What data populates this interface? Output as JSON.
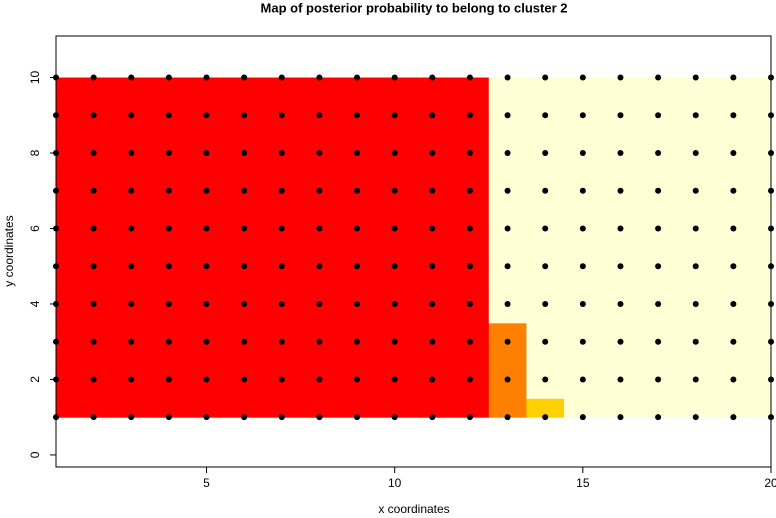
{
  "chart_data": {
    "type": "heatmap",
    "title": "Map of posterior probability to belong to cluster  2",
    "x_label": "x coordinates",
    "y_label": "y coordinates",
    "x": [
      1,
      2,
      3,
      4,
      5,
      6,
      7,
      8,
      9,
      10,
      11,
      12,
      13,
      14,
      15,
      16,
      17,
      18,
      19,
      20
    ],
    "y": [
      1,
      2,
      3,
      4,
      5,
      6,
      7,
      8,
      9,
      10
    ],
    "z": [
      [
        0,
        0,
        0,
        0,
        0,
        0,
        0,
        0,
        0,
        0,
        0,
        0,
        0.3,
        0.4,
        1,
        1,
        1,
        1,
        1,
        1
      ],
      [
        0,
        0,
        0,
        0,
        0,
        0,
        0,
        0,
        0,
        0,
        0,
        0,
        0.3,
        0.85,
        1,
        1,
        1,
        1,
        1,
        1
      ],
      [
        0,
        0,
        0,
        0,
        0,
        0,
        0,
        0,
        0,
        0,
        0,
        0,
        0.3,
        1,
        1,
        1,
        1,
        1,
        1,
        1
      ],
      [
        0,
        0,
        0,
        0,
        0,
        0,
        0,
        0,
        0,
        0,
        0,
        0,
        0.95,
        1,
        1,
        1,
        1,
        1,
        1,
        1
      ],
      [
        0,
        0,
        0,
        0,
        0,
        0,
        0,
        0,
        0,
        0,
        0,
        0,
        0.95,
        1,
        1,
        1,
        1,
        1,
        1,
        1
      ],
      [
        0,
        0,
        0,
        0,
        0,
        0,
        0,
        0,
        0,
        0,
        0,
        0,
        0.95,
        1,
        1,
        1,
        1,
        1,
        1,
        1
      ],
      [
        0,
        0,
        0,
        0,
        0,
        0,
        0,
        0,
        0,
        0,
        0,
        0,
        0.95,
        1,
        1,
        1,
        1,
        1,
        1,
        1
      ],
      [
        0,
        0,
        0,
        0,
        0,
        0,
        0,
        0,
        0,
        0,
        0,
        0,
        0.95,
        1,
        1,
        1,
        1,
        1,
        1,
        1
      ],
      [
        0,
        0,
        0,
        0,
        0,
        0,
        0,
        0,
        0,
        0,
        0,
        0,
        0.95,
        1,
        1,
        1,
        1,
        1,
        1,
        1
      ],
      [
        0,
        0,
        0,
        0,
        0,
        0,
        0,
        0,
        0,
        0,
        0,
        0,
        0.95,
        1,
        1,
        1,
        1,
        1,
        1,
        1
      ]
    ],
    "zlim": [
      0,
      1
    ],
    "palette": [
      "#FF0000",
      "#FF8000",
      "#FFD000",
      "#FFFF2A",
      "#FFFFD5"
    ],
    "point_color": "#000000",
    "xlim": [
      1,
      20
    ],
    "ylim": [
      -0.32,
      11.1
    ],
    "xticks": [
      5,
      10,
      15,
      20
    ],
    "yticks": [
      0,
      2,
      4,
      6,
      8,
      10
    ]
  }
}
